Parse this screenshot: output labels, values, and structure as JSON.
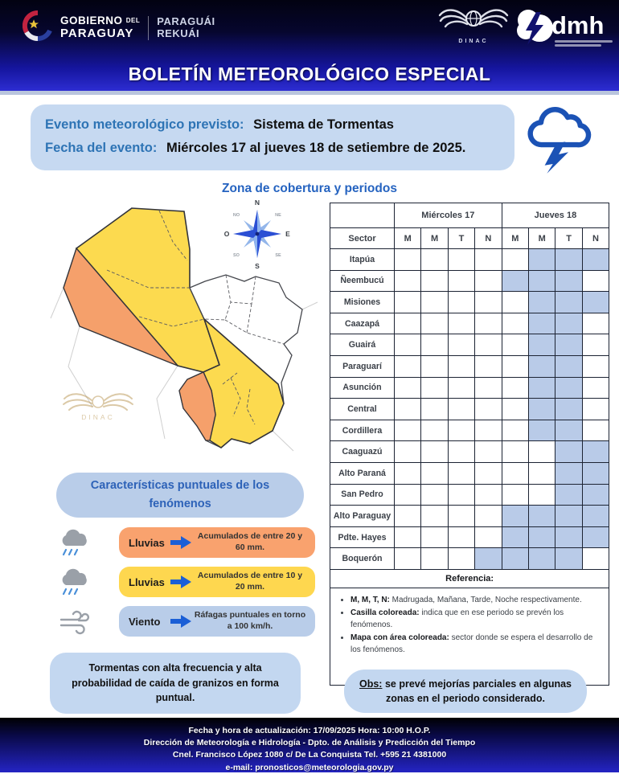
{
  "header": {
    "title": "BOLETÍN METEOROLÓGICO ESPECIAL",
    "gov": {
      "line1": "GOBIERNO",
      "line1_small": "DEL",
      "line2": "PARAGUAY",
      "line3": "PARAGUÁI",
      "line4": "REKUÁI"
    },
    "dinac_label": "DINAC",
    "dmh_label": "dmh"
  },
  "event": {
    "label": "Evento meteorológico previsto:",
    "value": "Sistema de Tormentas",
    "date_label": "Fecha del evento:",
    "date_value": "Miércoles 17 al jueves 18 de setiembre de 2025."
  },
  "section_title": "Zona de cobertura y periodos",
  "map": {
    "watermark_label": "DINAC",
    "compass": {
      "n": "N",
      "s": "S",
      "e": "E",
      "o": "O",
      "ne": "NE",
      "no": "NO",
      "se": "SE",
      "so": "SO"
    },
    "colors": {
      "coverage_high": "#f5a06b",
      "coverage_moderate": "#fcda4f",
      "no_coverage": "#ffffff"
    }
  },
  "schedule_table": {
    "day1": "Miércoles 17",
    "day2": "Jueves 18",
    "sector_header": "Sector",
    "period_headers": [
      "M",
      "M",
      "T",
      "N",
      "M",
      "M",
      "T",
      "N"
    ],
    "cell_color": "#b9cbe8",
    "rows": [
      {
        "sector": "Itapúa",
        "cells": [
          0,
          0,
          0,
          0,
          0,
          1,
          1,
          1
        ]
      },
      {
        "sector": "Ñeembucú",
        "cells": [
          0,
          0,
          0,
          0,
          1,
          1,
          1,
          0
        ]
      },
      {
        "sector": "Misiones",
        "cells": [
          0,
          0,
          0,
          0,
          0,
          1,
          1,
          1
        ]
      },
      {
        "sector": "Caazapá",
        "cells": [
          0,
          0,
          0,
          0,
          0,
          1,
          1,
          0
        ]
      },
      {
        "sector": "Guairá",
        "cells": [
          0,
          0,
          0,
          0,
          0,
          1,
          1,
          0
        ]
      },
      {
        "sector": "Paraguarí",
        "cells": [
          0,
          0,
          0,
          0,
          0,
          1,
          1,
          0
        ]
      },
      {
        "sector": "Asunción",
        "cells": [
          0,
          0,
          0,
          0,
          0,
          1,
          1,
          0
        ]
      },
      {
        "sector": "Central",
        "cells": [
          0,
          0,
          0,
          0,
          0,
          1,
          1,
          0
        ]
      },
      {
        "sector": "Cordillera",
        "cells": [
          0,
          0,
          0,
          0,
          0,
          1,
          1,
          0
        ]
      },
      {
        "sector": "Caaguazú",
        "cells": [
          0,
          0,
          0,
          0,
          0,
          0,
          1,
          1
        ]
      },
      {
        "sector": "Alto Paraná",
        "cells": [
          0,
          0,
          0,
          0,
          0,
          0,
          1,
          1
        ]
      },
      {
        "sector": "San Pedro",
        "cells": [
          0,
          0,
          0,
          0,
          0,
          0,
          1,
          1
        ]
      },
      {
        "sector": "Alto Paraguay",
        "cells": [
          0,
          0,
          0,
          0,
          1,
          1,
          1,
          1
        ]
      },
      {
        "sector": "Pdte. Hayes",
        "cells": [
          0,
          0,
          0,
          0,
          1,
          1,
          1,
          1
        ]
      },
      {
        "sector": "Boquerón",
        "cells": [
          0,
          0,
          0,
          1,
          1,
          1,
          1,
          0
        ]
      }
    ],
    "reference_title": "Referencia:",
    "reference_items": [
      {
        "lead": "M, M, T, N:",
        "rest": " Madrugada, Mañana, Tarde, Noche respectivamente."
      },
      {
        "lead": "Casilla coloreada:",
        "rest": " indica que en ese periodo se prevén los fenómenos."
      },
      {
        "lead": "Mapa con área coloreada:",
        "rest": " sector donde se espera el desarrollo de los fenómenos."
      }
    ]
  },
  "characteristics": {
    "title": "Características puntuales de los fenómenos",
    "items": [
      {
        "label": "Lluvias",
        "desc": "Acumulados de entre 20 y 60 mm.",
        "color": "#f9a26e",
        "icon": "rain-cloud-icon"
      },
      {
        "label": "Lluvias",
        "desc": "Acumulados de entre 10 y 20 mm.",
        "color": "#fed74f",
        "icon": "rain-cloud-icon"
      },
      {
        "label": "Viento",
        "desc": "Ráfagas puntuales en torno a 100 km/h.",
        "color": "#b9cde9",
        "icon": "wind-icon"
      }
    ]
  },
  "notes": {
    "storm": "Tormentas con alta frecuencia y alta probabilidad de caída de granizos en forma puntual.",
    "obs_label": "Obs:",
    "obs_text": " se prevé mejorías parciales en algunas zonas en el periodo considerado."
  },
  "footer": {
    "line1": "Fecha y hora de actualización: 17/09/2025 Hora: 10:00 H.O.P.",
    "line2": "Dirección de Meteorología e Hidrología - Dpto. de Análisis y Predicción del Tiempo",
    "line3": "Cnel. Francisco López 1080 c/ De La Conquista Tel. +595 21 4381000",
    "line4": "e-mail: pronosticos@meteorologia.gov.py"
  }
}
